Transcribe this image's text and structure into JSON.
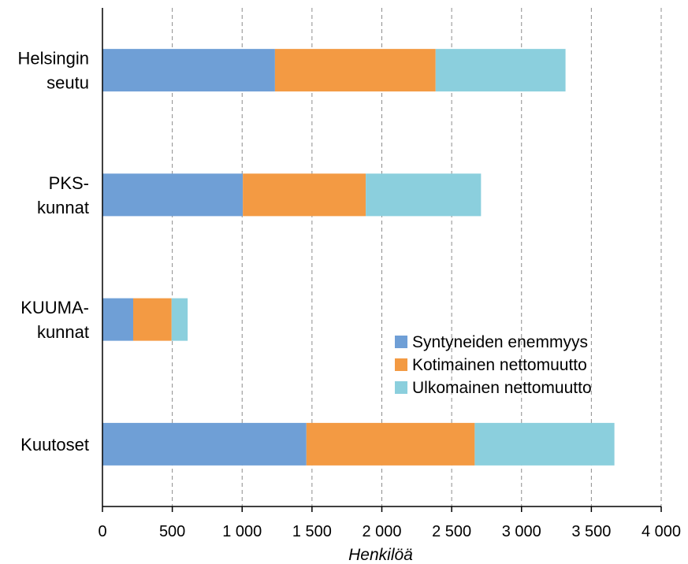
{
  "chart_data": {
    "type": "bar",
    "orientation": "horizontal",
    "stacked": true,
    "categories": [
      [
        "Helsingin",
        "seutu"
      ],
      [
        "PKS-",
        "kunnat"
      ],
      [
        "KUUMA-",
        "kunnat"
      ],
      [
        "Kuutoset"
      ]
    ],
    "series": [
      {
        "name": "Syntyneiden enemmyys",
        "color": "#6f9fd6",
        "values": [
          1235,
          1005,
          220,
          1460
        ]
      },
      {
        "name": "Kotimainen nettomuutto",
        "color": "#f39a43",
        "values": [
          1150,
          880,
          275,
          1205
        ]
      },
      {
        "name": "Ulkomainen nettomuutto",
        "color": "#8bcfdd",
        "values": [
          930,
          825,
          115,
          1000
        ]
      }
    ],
    "xlabel": "Henkilöä",
    "xlim": [
      0,
      4000
    ],
    "xticks": [
      0,
      500,
      1000,
      1500,
      2000,
      2500,
      3000,
      3500,
      4000
    ],
    "xtick_labels": [
      "0",
      "500",
      "1 000",
      "1 500",
      "2 000",
      "2 500",
      "3 000",
      "3 500",
      "4 000"
    ],
    "grid": "vertical dashed",
    "legend_position": "right-middle"
  }
}
